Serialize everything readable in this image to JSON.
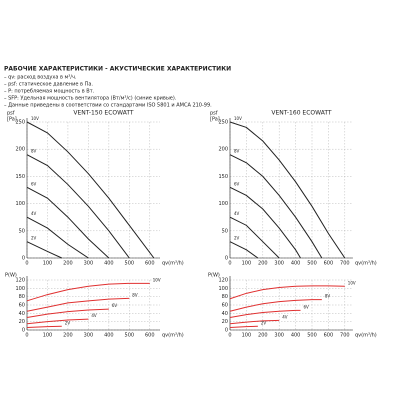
{
  "header": {
    "title": "РАБОЧИЕ ХАРАКТЕРИСТИКИ - АКУСТИЧЕСКИЕ ХАРАКТЕРИСТИКИ",
    "notes": [
      "– qv: расход воздуха в м³/ч.",
      "– psf: статическое давление в Па.",
      "– P: потребляемая мощность в Вт.",
      "– SFP: Удельная мощность вентилятора (Вт/м³/с) (синие кривые).",
      "– Данные приведены в соответствии со стандартами  ISO 5801 и AMCA 210-99."
    ]
  },
  "chart_data": [
    {
      "type": "line",
      "title": "VENT-150 ECOWATT",
      "y_label": "psf",
      "y_unit": "[Pa]",
      "x_label": "qv(m³/h)",
      "xlim": [
        0,
        650
      ],
      "xticks": [
        0,
        100,
        200,
        300,
        400,
        500,
        600
      ],
      "ylim": [
        0,
        250
      ],
      "yticks": [
        0,
        50,
        100,
        150,
        200,
        250
      ],
      "grid": true,
      "color": "#222222",
      "series": [
        {
          "name": "10V",
          "x": [
            0,
            100,
            200,
            300,
            400,
            500,
            620
          ],
          "values": [
            250,
            230,
            195,
            155,
            110,
            60,
            0
          ]
        },
        {
          "name": "8V",
          "x": [
            0,
            100,
            200,
            300,
            400,
            500
          ],
          "values": [
            190,
            170,
            135,
            95,
            50,
            0
          ]
        },
        {
          "name": "6V",
          "x": [
            0,
            100,
            200,
            300,
            400
          ],
          "values": [
            130,
            110,
            75,
            35,
            0
          ]
        },
        {
          "name": "4V",
          "x": [
            0,
            100,
            200,
            300
          ],
          "values": [
            75,
            55,
            25,
            0
          ]
        },
        {
          "name": "2V",
          "x": [
            0,
            100,
            170
          ],
          "values": [
            30,
            12,
            0
          ]
        }
      ]
    },
    {
      "type": "line",
      "title": "VENT-160 ECOWATT",
      "y_label": "psf",
      "y_unit": "[Pa]",
      "x_label": "qv(m³/h)",
      "xlim": [
        0,
        750
      ],
      "xticks": [
        0,
        100,
        200,
        300,
        400,
        500,
        600,
        700
      ],
      "ylim": [
        0,
        250
      ],
      "yticks": [
        0,
        50,
        100,
        150,
        200,
        250
      ],
      "grid": true,
      "color": "#222222",
      "series": [
        {
          "name": "10V",
          "x": [
            0,
            100,
            200,
            300,
            400,
            500,
            600,
            700
          ],
          "values": [
            250,
            240,
            215,
            180,
            140,
            95,
            45,
            0
          ]
        },
        {
          "name": "8V",
          "x": [
            0,
            100,
            200,
            300,
            400,
            500,
            560
          ],
          "values": [
            190,
            175,
            150,
            115,
            75,
            30,
            0
          ]
        },
        {
          "name": "6V",
          "x": [
            0,
            100,
            200,
            300,
            400,
            430
          ],
          "values": [
            130,
            115,
            90,
            55,
            15,
            0
          ]
        },
        {
          "name": "4V",
          "x": [
            0,
            100,
            200,
            300
          ],
          "values": [
            75,
            60,
            30,
            0
          ]
        },
        {
          "name": "2V",
          "x": [
            0,
            100,
            170
          ],
          "values": [
            30,
            15,
            0
          ]
        }
      ]
    },
    {
      "type": "line",
      "y_label": "P(W)",
      "x_label": "qv(m³/h)",
      "xlim": [
        0,
        650
      ],
      "xticks": [
        0,
        100,
        200,
        300,
        400,
        500,
        600
      ],
      "ylim": [
        0,
        120
      ],
      "yticks": [
        0,
        20,
        40,
        60,
        80,
        100,
        120
      ],
      "grid": true,
      "color": "#e03030",
      "series": [
        {
          "name": "10V",
          "x": [
            0,
            100,
            200,
            300,
            400,
            500,
            600
          ],
          "values": [
            70,
            85,
            97,
            105,
            110,
            112,
            112
          ]
        },
        {
          "name": "8V",
          "x": [
            0,
            100,
            200,
            300,
            400,
            500
          ],
          "values": [
            45,
            55,
            65,
            70,
            74,
            76
          ]
        },
        {
          "name": "6V",
          "x": [
            0,
            100,
            200,
            300,
            400
          ],
          "values": [
            30,
            38,
            44,
            48,
            50
          ]
        },
        {
          "name": "4V",
          "x": [
            0,
            100,
            200,
            300
          ],
          "values": [
            15,
            20,
            24,
            26
          ]
        },
        {
          "name": "2V",
          "x": [
            0,
            100,
            170
          ],
          "values": [
            6,
            8,
            9
          ]
        }
      ]
    },
    {
      "type": "line",
      "y_label": "P(W)",
      "x_label": "qv(m³/h)",
      "xlim": [
        0,
        750
      ],
      "xticks": [
        0,
        100,
        200,
        300,
        400,
        500,
        600,
        700
      ],
      "ylim": [
        0,
        120
      ],
      "yticks": [
        0,
        20,
        40,
        60,
        80,
        100,
        120
      ],
      "grid": true,
      "color": "#e03030",
      "series": [
        {
          "name": "10V",
          "x": [
            0,
            100,
            200,
            300,
            400,
            500,
            600,
            700
          ],
          "values": [
            75,
            88,
            97,
            102,
            105,
            106,
            106,
            105
          ]
        },
        {
          "name": "8V",
          "x": [
            0,
            100,
            200,
            300,
            400,
            500,
            560
          ],
          "values": [
            45,
            55,
            63,
            68,
            71,
            73,
            73
          ]
        },
        {
          "name": "6V",
          "x": [
            0,
            100,
            200,
            300,
            400,
            430
          ],
          "values": [
            30,
            37,
            42,
            45,
            47,
            47
          ]
        },
        {
          "name": "4V",
          "x": [
            0,
            100,
            200,
            300
          ],
          "values": [
            15,
            19,
            22,
            23
          ]
        },
        {
          "name": "2V",
          "x": [
            0,
            100,
            170
          ],
          "values": [
            6,
            8,
            9
          ]
        }
      ]
    }
  ]
}
